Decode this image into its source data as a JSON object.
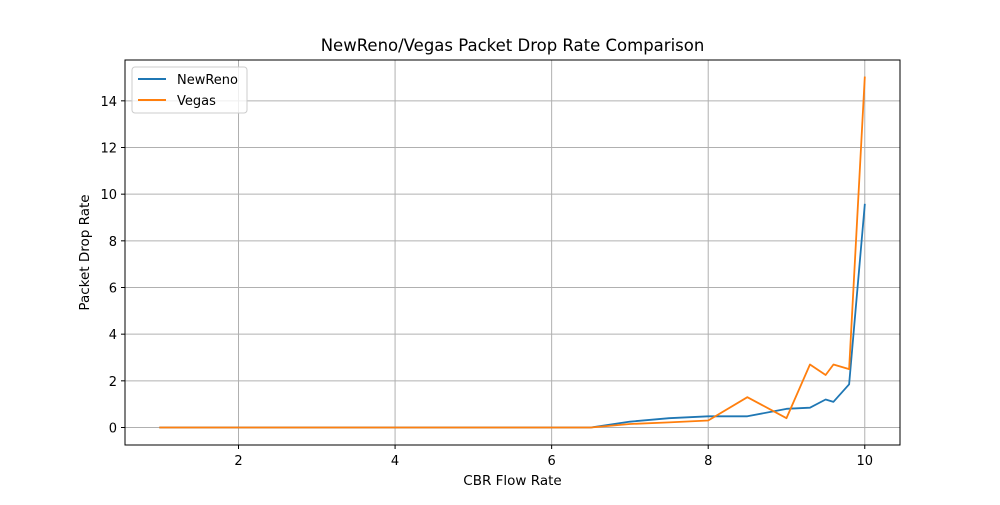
{
  "chart_data": {
    "type": "line",
    "title": "NewReno/Vegas Packet Drop Rate Comparison",
    "xlabel": "CBR Flow Rate",
    "ylabel": "Packet Drop Rate",
    "xlim": [
      0.55,
      10.45
    ],
    "ylim": [
      -0.75,
      15.75
    ],
    "xticks": [
      2,
      4,
      6,
      8,
      10
    ],
    "yticks": [
      0,
      2,
      4,
      6,
      8,
      10,
      12,
      14
    ],
    "grid": true,
    "legend_position": "top-left",
    "series": [
      {
        "name": "NewReno",
        "color": "#1f77b4",
        "x": [
          1,
          2,
          3,
          4,
          5,
          6,
          6.5,
          7,
          7.5,
          8,
          8.5,
          9,
          9.3,
          9.5,
          9.6,
          9.8,
          10
        ],
        "y": [
          0,
          0,
          0,
          0,
          0,
          0,
          0,
          0.25,
          0.4,
          0.48,
          0.48,
          0.8,
          0.85,
          1.2,
          1.1,
          1.85,
          9.55
        ]
      },
      {
        "name": "Vegas",
        "color": "#ff7f0e",
        "x": [
          1,
          2,
          3,
          4,
          5,
          6,
          6.5,
          7,
          7.5,
          8,
          8.5,
          9,
          9.3,
          9.5,
          9.6,
          9.8,
          10
        ],
        "y": [
          0,
          0,
          0,
          0,
          0,
          0,
          0,
          0.15,
          0.22,
          0.3,
          1.3,
          0.4,
          2.7,
          2.25,
          2.7,
          2.5,
          15
        ]
      }
    ]
  }
}
